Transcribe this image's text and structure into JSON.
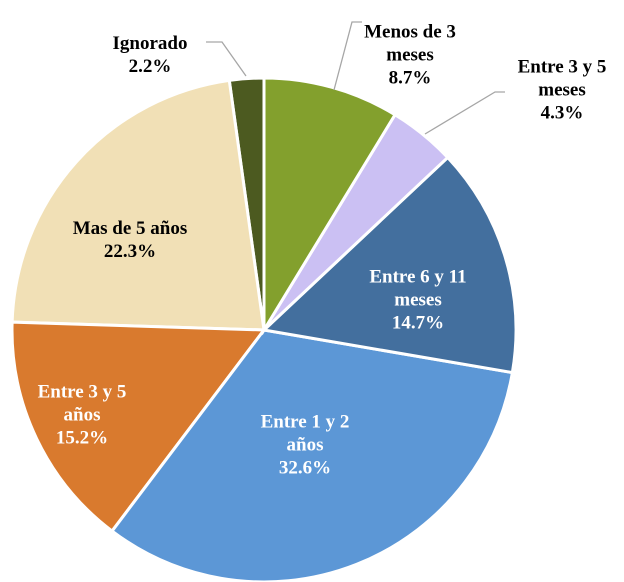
{
  "chart_data": {
    "type": "pie",
    "categories": [
      "Menos de 3 meses",
      "Entre 3 y 5 meses",
      "Entre 6 y 11 meses",
      "Entre 1 y 2 años",
      "Entre 3 y 5 años",
      "Mas de 5 años",
      "Ignorado"
    ],
    "values": [
      8.7,
      4.3,
      14.7,
      32.6,
      15.2,
      22.3,
      2.2
    ],
    "value_labels": [
      "8.7%",
      "4.3%",
      "14.7%",
      "32.6%",
      "15.2%",
      "22.3%",
      "2.2%"
    ],
    "colors": [
      "#83a02d",
      "#cbc0f3",
      "#436f9e",
      "#5c97d6",
      "#d97a2e",
      "#f1e0b6",
      "#4c5a20"
    ]
  }
}
